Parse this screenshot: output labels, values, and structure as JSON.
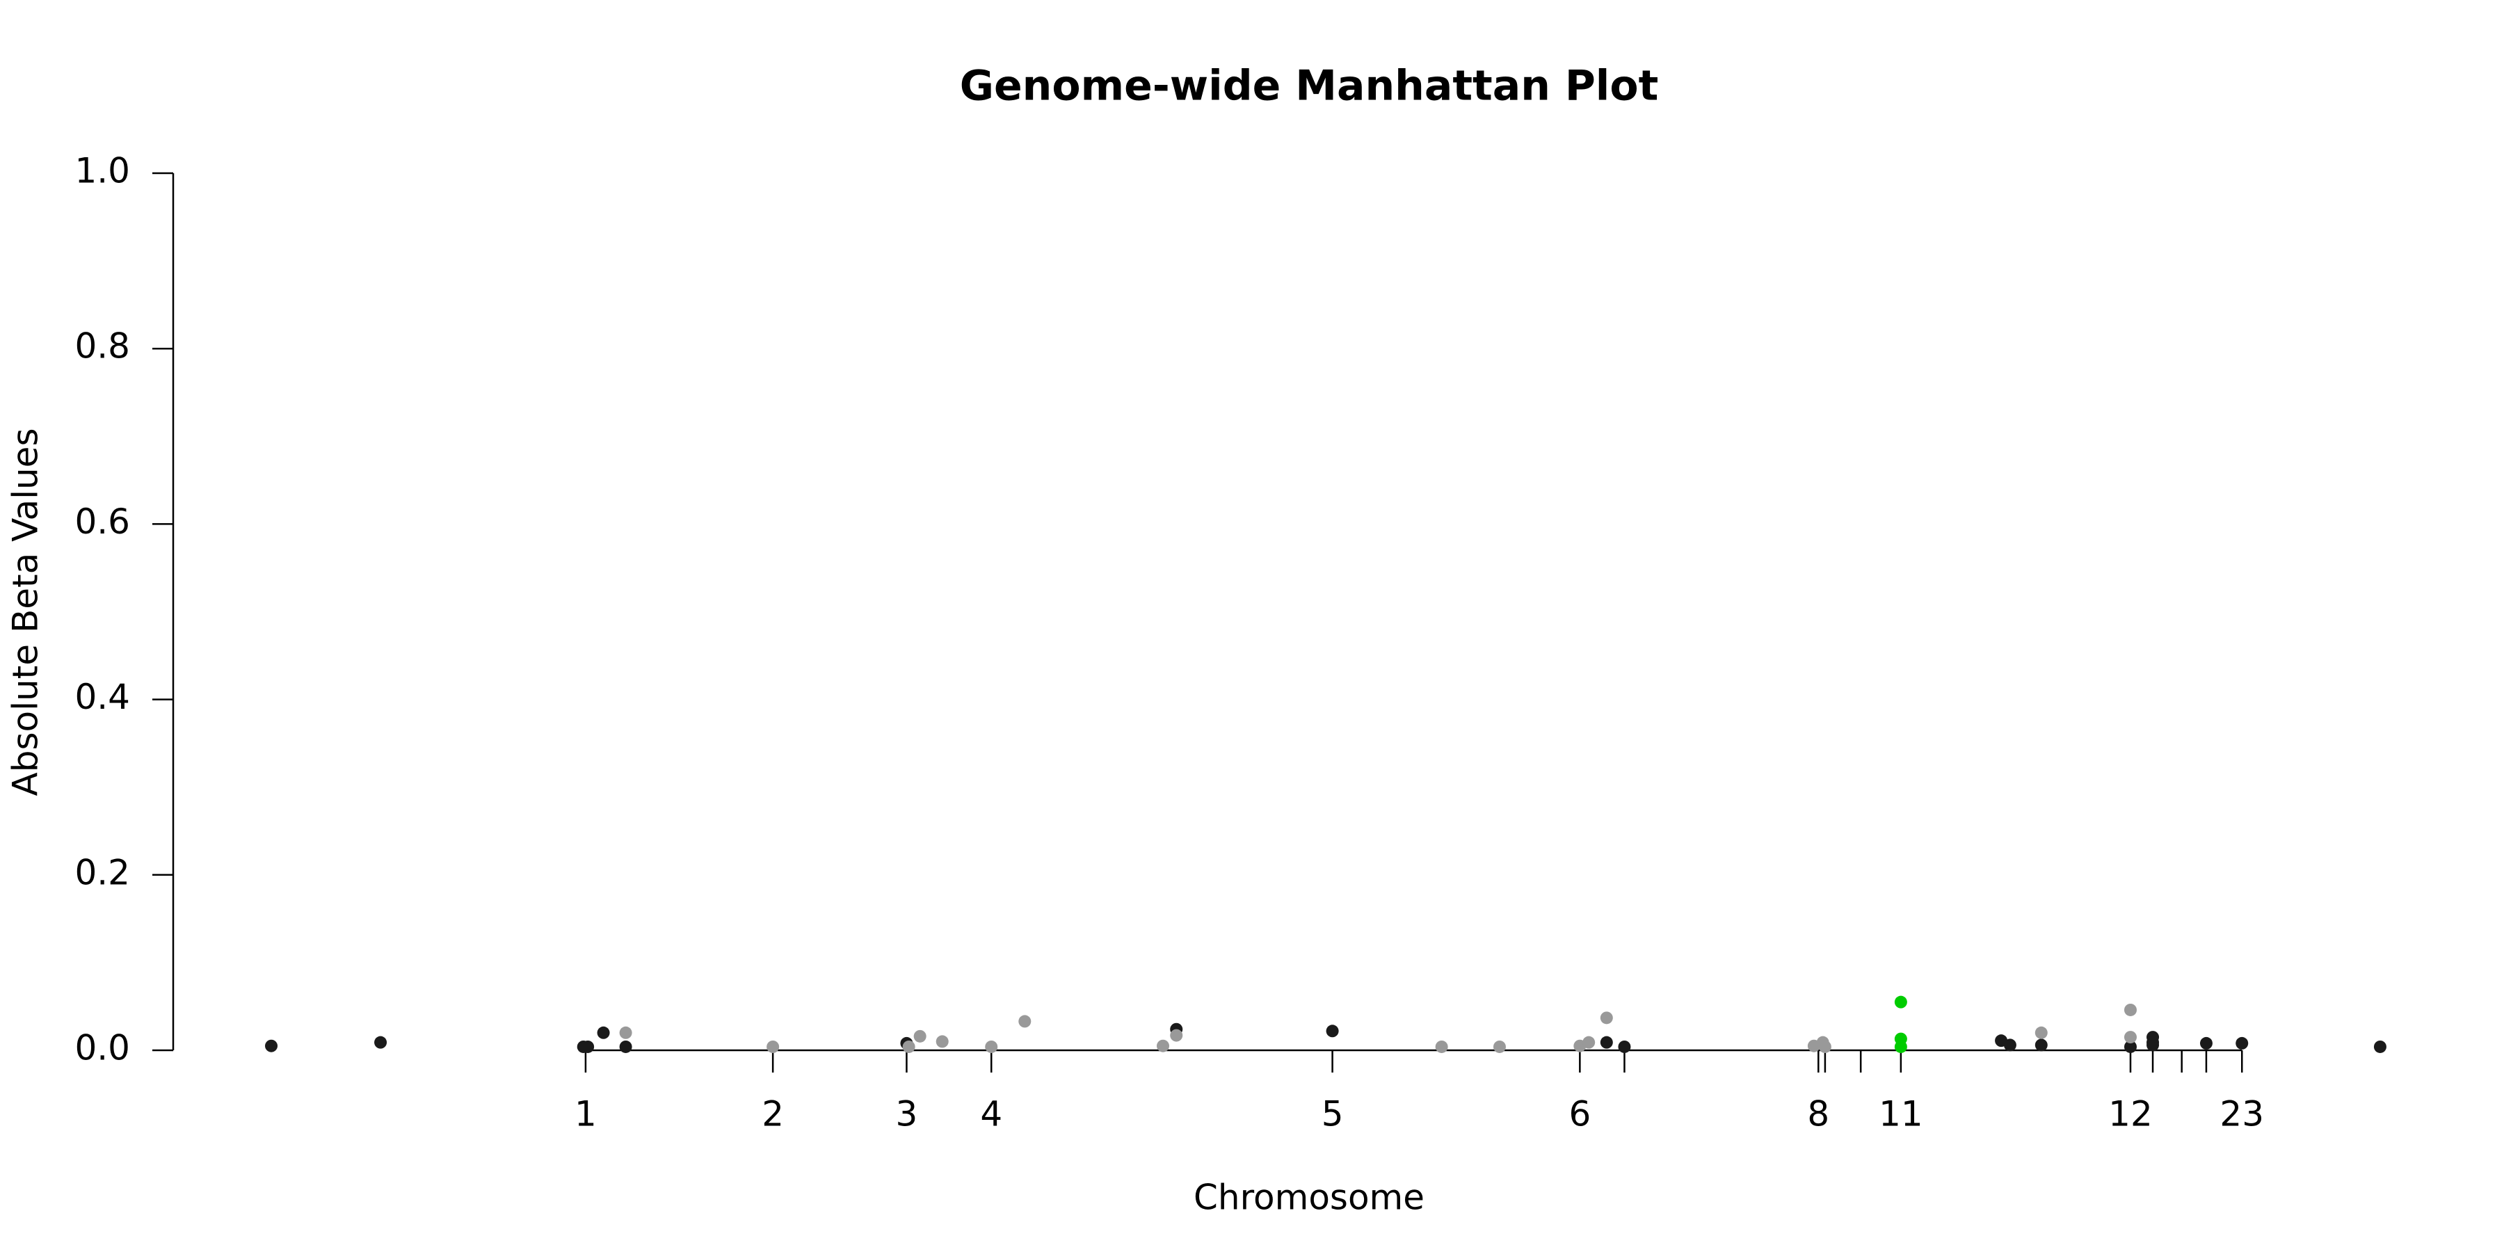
{
  "chart_data": {
    "type": "scatter",
    "title": "Genome-wide Manhattan Plot",
    "x_label": "Chromosome",
    "y_label": "Absolute Beta Values",
    "xlim": [
      0,
      100
    ],
    "ylim": [
      0,
      1
    ],
    "yticks": [
      {
        "value": 0,
        "label": "0.0"
      },
      0.2,
      0.4,
      0.6,
      0.8,
      {
        "value": 1,
        "label": "1.0"
      }
    ],
    "xticks": [
      {
        "value": 18.5,
        "label": "1"
      },
      {
        "value": 26.9,
        "label": "2"
      },
      {
        "value": 32.9,
        "label": "3"
      },
      {
        "value": 36.7,
        "label": "4"
      },
      {
        "value": 52.0,
        "label": "5"
      },
      {
        "value": 63.1,
        "label": "6"
      },
      {
        "value": 65.1,
        "label": null
      },
      {
        "value": 73.8,
        "label": "8"
      },
      {
        "value": 74.1,
        "label": null
      },
      {
        "value": 75.7,
        "label": null
      },
      {
        "value": 77.5,
        "label": "11"
      },
      {
        "value": 87.8,
        "label": "12"
      },
      {
        "value": 88.8,
        "label": null
      },
      {
        "value": 90.1,
        "label": null
      },
      {
        "value": 91.2,
        "label": null
      },
      {
        "value": 92.8,
        "label": "23"
      }
    ],
    "series": [
      {
        "color": "#1a1a1a",
        "x": [
          4.4,
          9.3,
          18.4,
          18.6,
          19.3,
          20.3,
          32.9,
          45.0,
          52.0,
          64.3,
          65.1,
          82.0,
          82.4,
          83.8,
          87.8,
          88.8,
          88.8,
          88.8,
          91.2,
          92.8,
          99.0
        ],
        "values": [
          0.005,
          0.009,
          0.004,
          0.004,
          0.02,
          0.004,
          0.008,
          0.024,
          0.022,
          0.009,
          0.004,
          0.011,
          0.006,
          0.006,
          0.004,
          0.015,
          0.009,
          0.006,
          0.008,
          0.008,
          0.004
        ]
      },
      {
        "color": "#999999",
        "x": [
          20.3,
          26.9,
          33.0,
          33.5,
          34.5,
          36.7,
          38.2,
          44.4,
          45.0,
          56.9,
          59.5,
          63.1,
          63.5,
          64.3,
          73.6,
          74.0,
          74.1,
          83.8,
          87.8,
          87.8
        ],
        "values": [
          0.02,
          0.004,
          0.004,
          0.016,
          0.01,
          0.004,
          0.033,
          0.005,
          0.017,
          0.004,
          0.004,
          0.005,
          0.009,
          0.037,
          0.005,
          0.009,
          0.004,
          0.02,
          0.046,
          0.015
        ]
      },
      {
        "color": "#00cc00",
        "x": [
          77.5,
          77.5,
          77.5
        ],
        "values": [
          0.055,
          0.013,
          0.004
        ]
      }
    ]
  }
}
